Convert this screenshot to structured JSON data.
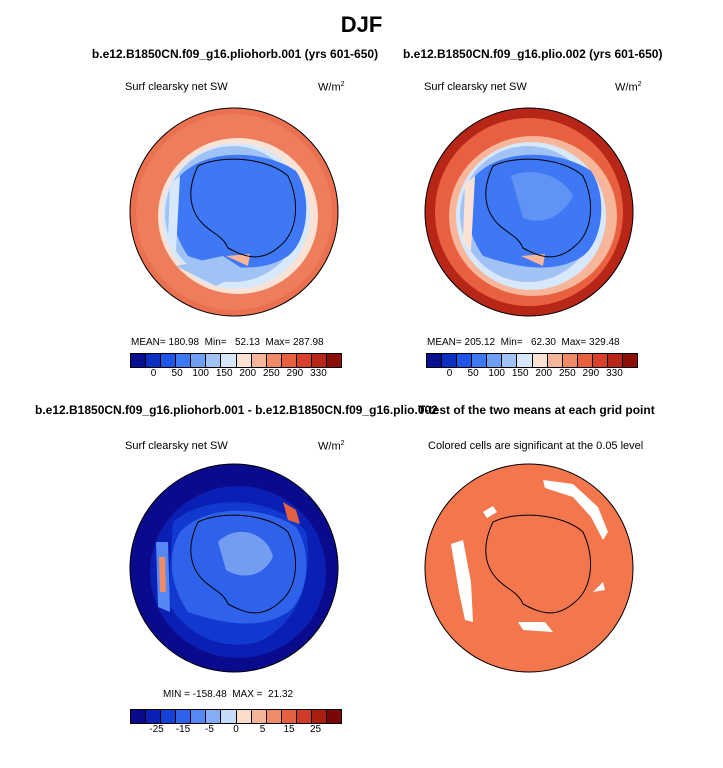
{
  "title": "DJF",
  "panels": [
    {
      "title": "b.e12.B1850CN.f09_g16.pliohorb.001 (yrs 601-650)",
      "left_label": "Surf clearsky net SW",
      "right_label": "W/m",
      "right_label_sup": "2",
      "stats": "MEAN= 180.98  Min=   52.13  Max= 287.98",
      "colorbar_ticks": [
        "0",
        "50",
        "100",
        "150",
        "200",
        "250",
        "290",
        "330"
      ]
    },
    {
      "title": "b.e12.B1850CN.f09_g16.plio.002 (yrs 601-650)",
      "left_label": "Surf clearsky net SW",
      "right_label": "W/m",
      "right_label_sup": "2",
      "stats": "MEAN= 205.12  Min=   62.30  Max= 329.48",
      "colorbar_ticks": [
        "0",
        "50",
        "100",
        "150",
        "200",
        "250",
        "290",
        "330"
      ]
    },
    {
      "title": "b.e12.B1850CN.f09_g16.pliohorb.001 - b.e12.B1850CN.f09_g16.plio.002",
      "left_label": "Surf clearsky net SW",
      "right_label": "W/m",
      "right_label_sup": "2",
      "stats": "MIN = -158.48  MAX =  21.32",
      "colorbar_ticks": [
        "-25",
        "-15",
        "-5",
        "0",
        "5",
        "15",
        "25"
      ]
    },
    {
      "title": "T-test of the two means at each grid point",
      "left_label": "Colored cells are significant at the 0.05 level"
    }
  ],
  "colors": {
    "abs_scale": [
      "#08108f",
      "#0b2fbf",
      "#1f55e8",
      "#3f78f5",
      "#6f9ef5",
      "#a0c2f5",
      "#d8e8fb",
      "#fbe2d5",
      "#f7b599",
      "#f08a66",
      "#e8603f",
      "#d8402a",
      "#b82618",
      "#8a0e06"
    ],
    "diff_scale": [
      "#0a0a8c",
      "#0a1fb4",
      "#1440d6",
      "#2e62ea",
      "#5787f2",
      "#86acf4",
      "#c5dbfa",
      "#fbdcc8",
      "#f6b497",
      "#ef8b67",
      "#e4603f",
      "#cf3b26",
      "#aa1e10",
      "#7a0606"
    ],
    "significant": "#f4764c"
  }
}
